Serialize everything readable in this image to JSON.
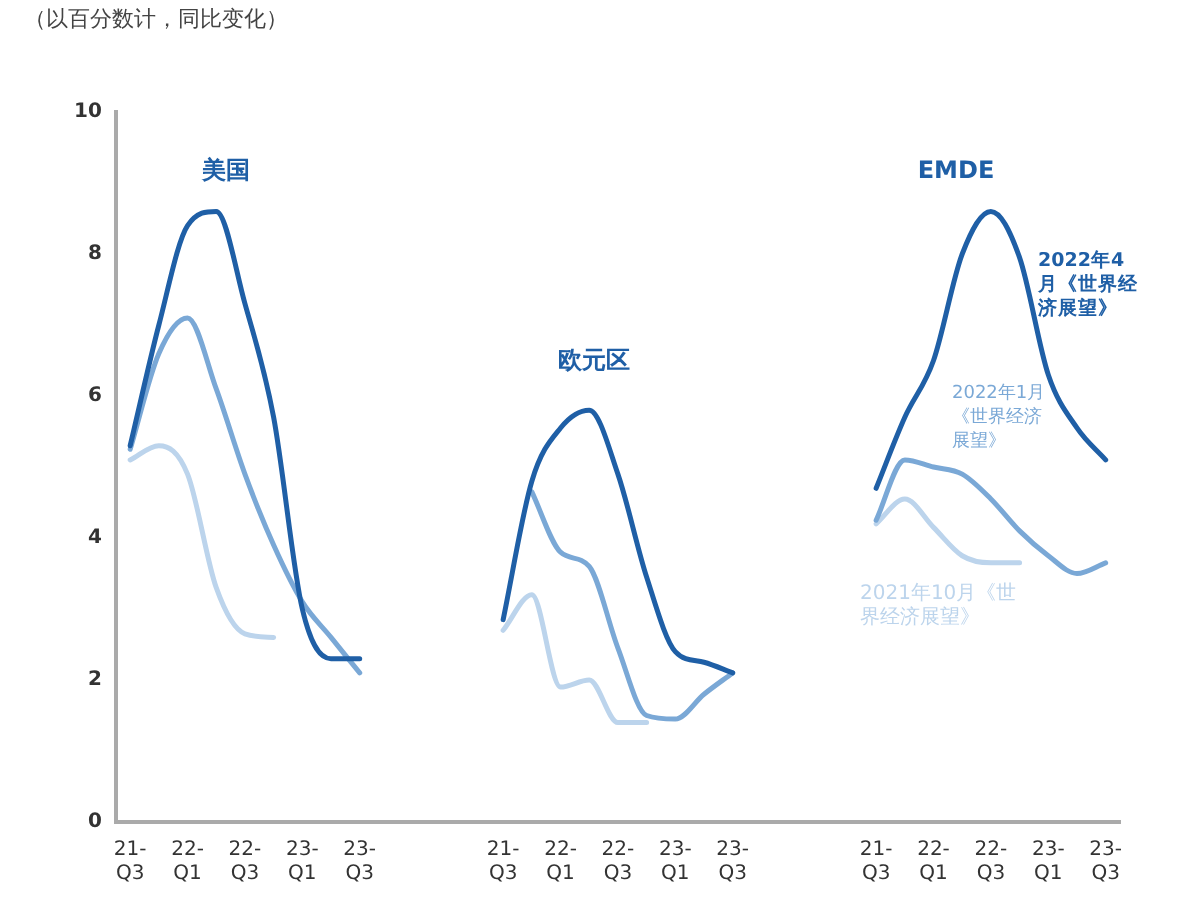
{
  "chart_data": {
    "type": "line",
    "title": "（以百分数计，同比变化）",
    "annotations": [
      "美国",
      "欧元区",
      "EMDE"
    ],
    "categories": [
      "21-Q3",
      null,
      "22-Q1",
      null,
      "22-Q3",
      null,
      "23-Q1",
      null,
      "23-Q3",
      null,
      null,
      null,
      null,
      "21-Q3",
      null,
      "22-Q1",
      null,
      "22-Q3",
      null,
      "23-Q1",
      null,
      "23-Q3",
      null,
      null,
      null,
      null,
      "21-Q3",
      null,
      "22-Q1",
      null,
      "22-Q3",
      null,
      "23-Q1",
      null,
      "23-Q3"
    ],
    "ylim": [
      0,
      10
    ],
    "yticks": [
      0,
      2,
      4,
      6,
      8,
      10
    ],
    "grid": false,
    "legend": false,
    "marker": "none",
    "line_style": "solid",
    "series": [
      {
        "name": "2022年4月《世界经济展望》",
        "color": "#1f5fa6",
        "values": [
          5.3,
          7.0,
          8.4,
          8.6,
          7.3,
          5.7,
          3.0,
          2.3,
          2.3,
          null,
          null,
          null,
          null,
          2.85,
          4.8,
          5.55,
          5.8,
          4.9,
          3.45,
          2.4,
          2.25,
          2.1,
          null,
          null,
          null,
          null,
          4.7,
          5.7,
          6.5,
          8.0,
          8.6,
          7.95,
          6.3,
          5.55,
          5.1
        ]
      },
      {
        "name": "2022年1月《世界经济展望》",
        "color": "#7aa8d6",
        "values": [
          5.25,
          6.6,
          7.1,
          6.1,
          4.9,
          3.9,
          3.1,
          2.6,
          2.1,
          null,
          null,
          null,
          null,
          null,
          4.65,
          3.8,
          3.6,
          2.45,
          1.5,
          1.45,
          1.8,
          2.1,
          null,
          null,
          null,
          null,
          4.25,
          5.1,
          5.0,
          4.9,
          4.55,
          4.1,
          3.75,
          3.5,
          3.65
        ]
      },
      {
        "name": "2021年10月《世界经济展望》",
        "color": "#bcd4ec",
        "values": [
          5.1,
          5.3,
          4.9,
          3.3,
          2.65,
          2.6,
          null,
          null,
          null,
          null,
          null,
          null,
          null,
          2.7,
          3.2,
          1.9,
          2.0,
          1.4,
          1.4,
          null,
          null,
          null,
          null,
          null,
          null,
          null,
          4.2,
          4.55,
          4.15,
          3.75,
          3.65,
          3.65,
          null,
          null,
          null
        ]
      }
    ]
  }
}
